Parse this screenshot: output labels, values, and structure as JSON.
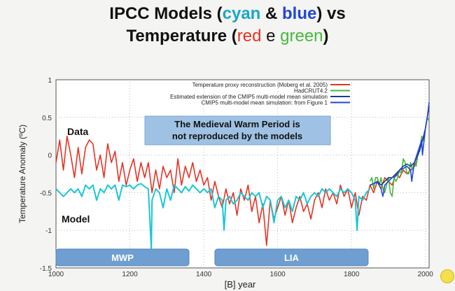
{
  "header": {
    "line1": {
      "part1": "IPCC Models (",
      "cyan": "cyan",
      "amp": " & ",
      "blue": "blue",
      "part2": ") vs"
    },
    "line2": {
      "part1": "Temperature (",
      "red": "red",
      "e": " e ",
      "green": "green",
      "part2": ")"
    }
  },
  "chart_data": {
    "type": "line",
    "xlabel": "[B]   year",
    "ylabel": "Temperature Anomaly (ºC)",
    "xlim": [
      1000,
      2010
    ],
    "ylim": [
      -1.5,
      1
    ],
    "xticks": [
      1000,
      1200,
      1400,
      1600,
      1800,
      2000
    ],
    "yticks": [
      -1.5,
      -1,
      -0.5,
      0,
      0.5,
      1
    ],
    "ytick_labels": [
      "-1.5",
      "-1",
      "-0.5",
      "0",
      "0.5",
      "1"
    ],
    "legend_position": "top-right",
    "series": [
      {
        "name": "Temperature proxy reconstruction (Moberg et al. 2005)",
        "color": "#e53323",
        "x": [
          1000,
          1010,
          1020,
          1030,
          1040,
          1050,
          1060,
          1070,
          1080,
          1090,
          1100,
          1110,
          1120,
          1130,
          1140,
          1150,
          1160,
          1170,
          1180,
          1190,
          1200,
          1210,
          1220,
          1230,
          1240,
          1250,
          1260,
          1270,
          1280,
          1290,
          1300,
          1310,
          1320,
          1330,
          1340,
          1350,
          1360,
          1370,
          1380,
          1390,
          1400,
          1410,
          1420,
          1430,
          1440,
          1450,
          1460,
          1470,
          1480,
          1490,
          1500,
          1510,
          1520,
          1530,
          1540,
          1550,
          1560,
          1570,
          1580,
          1590,
          1600,
          1610,
          1620,
          1630,
          1640,
          1650,
          1660,
          1670,
          1680,
          1690,
          1700,
          1710,
          1720,
          1730,
          1740,
          1750,
          1760,
          1770,
          1780,
          1790,
          1800,
          1810,
          1820,
          1830,
          1840,
          1850,
          1860,
          1870,
          1880,
          1890,
          1900,
          1910,
          1920,
          1930,
          1940,
          1950,
          1960,
          1970,
          1979
        ],
        "y": [
          -0.1,
          0.2,
          -0.2,
          0.25,
          0,
          -0.3,
          0.1,
          -0.25,
          0.1,
          0.2,
          0.15,
          -0.2,
          0,
          -0.3,
          0.15,
          -0.1,
          0.05,
          -0.35,
          -0.1,
          -0.4,
          -0.2,
          -0.05,
          -0.35,
          -0.1,
          -0.3,
          -0.1,
          -0.5,
          -0.2,
          -0.45,
          -0.15,
          -0.3,
          -0.2,
          -0.5,
          -0.05,
          -0.4,
          -0.15,
          -0.3,
          -0.1,
          -0.35,
          -0.2,
          -0.4,
          -0.3,
          -0.6,
          -0.35,
          -0.55,
          -0.7,
          -0.45,
          -0.65,
          -0.5,
          -0.8,
          -0.45,
          -0.6,
          -0.4,
          -0.75,
          -0.55,
          -0.9,
          -0.65,
          -1.2,
          -0.6,
          -0.85,
          -0.7,
          -0.55,
          -0.8,
          -0.6,
          -0.9,
          -0.7,
          -0.55,
          -0.75,
          -0.65,
          -0.85,
          -0.6,
          -0.5,
          -0.7,
          -0.45,
          -0.6,
          -0.5,
          -0.65,
          -0.4,
          -0.55,
          -0.45,
          -0.7,
          -0.5,
          -0.8,
          -0.55,
          -0.6,
          -0.4,
          -0.5,
          -0.35,
          -0.45,
          -0.3,
          -0.35,
          -0.4,
          -0.25,
          -0.3,
          -0.2,
          -0.25,
          -0.2,
          -0.15,
          -0.05
        ]
      },
      {
        "name": "HadCRUT4.2",
        "color": "#46b83a",
        "x": [
          1850,
          1855,
          1860,
          1865,
          1870,
          1875,
          1880,
          1885,
          1890,
          1895,
          1900,
          1905,
          1910,
          1915,
          1920,
          1925,
          1930,
          1935,
          1940,
          1945,
          1950,
          1955,
          1960,
          1965,
          1970,
          1975,
          1980,
          1985,
          1990,
          1995,
          2000,
          2005,
          2010
        ],
        "y": [
          -0.35,
          -0.3,
          -0.45,
          -0.3,
          -0.3,
          -0.4,
          -0.3,
          -0.45,
          -0.5,
          -0.4,
          -0.3,
          -0.5,
          -0.55,
          -0.3,
          -0.35,
          -0.3,
          -0.2,
          -0.25,
          -0.05,
          -0.1,
          -0.25,
          -0.25,
          -0.1,
          -0.2,
          -0.1,
          -0.15,
          0.05,
          0.05,
          0.25,
          0.2,
          0.35,
          0.5,
          0.45
        ]
      },
      {
        "name": "Estimated extension of the CMIP5 multi-model mean simulation",
        "color": "#1b3d8f",
        "x": [
          1850,
          1860,
          1870,
          1880,
          1890,
          1900,
          1910,
          1920,
          1930,
          1940,
          1950,
          1960,
          1970,
          1980,
          1990,
          2000,
          2010
        ],
        "y": [
          -0.4,
          -0.38,
          -0.35,
          -0.4,
          -0.35,
          -0.3,
          -0.3,
          -0.25,
          -0.2,
          -0.15,
          -0.12,
          -0.15,
          -0.1,
          0,
          0.15,
          0.35,
          0.65
        ]
      },
      {
        "name": "CMIP5 multi-model mean simulation: from Figure 1",
        "color": "#2346d8",
        "x": [
          1850,
          1860,
          1870,
          1880,
          1885,
          1890,
          1900,
          1910,
          1920,
          1930,
          1940,
          1950,
          1960,
          1963,
          1970,
          1980,
          1990,
          1992,
          2000,
          2005,
          2010
        ],
        "y": [
          -0.4,
          -0.38,
          -0.36,
          -0.45,
          -0.55,
          -0.4,
          -0.35,
          -0.3,
          -0.28,
          -0.2,
          -0.18,
          -0.15,
          -0.2,
          -0.35,
          -0.1,
          0.05,
          0.2,
          0,
          0.35,
          0.5,
          0.7
        ]
      },
      {
        "name": "",
        "color": "#1dc6d6",
        "x": [
          1000,
          1010,
          1020,
          1030,
          1040,
          1050,
          1060,
          1070,
          1080,
          1090,
          1100,
          1110,
          1120,
          1130,
          1140,
          1150,
          1160,
          1170,
          1180,
          1190,
          1200,
          1210,
          1220,
          1230,
          1240,
          1250,
          1258,
          1260,
          1270,
          1280,
          1290,
          1300,
          1310,
          1320,
          1330,
          1340,
          1350,
          1360,
          1370,
          1380,
          1390,
          1400,
          1410,
          1420,
          1430,
          1440,
          1450,
          1455,
          1460,
          1470,
          1480,
          1490,
          1500,
          1510,
          1520,
          1530,
          1540,
          1550,
          1560,
          1570,
          1580,
          1590,
          1600,
          1610,
          1620,
          1630,
          1640,
          1650,
          1660,
          1670,
          1680,
          1690,
          1700,
          1710,
          1720,
          1730,
          1740,
          1750,
          1760,
          1770,
          1780,
          1790,
          1800,
          1810,
          1815,
          1820,
          1830,
          1840,
          1850
        ],
        "y": [
          -0.45,
          -0.5,
          -0.55,
          -0.5,
          -0.45,
          -0.5,
          -0.45,
          -0.55,
          -0.4,
          -0.45,
          -0.4,
          -0.6,
          -0.45,
          -0.5,
          -0.4,
          -0.45,
          -0.4,
          -0.6,
          -0.4,
          -0.42,
          -0.4,
          -0.45,
          -0.4,
          -0.38,
          -0.42,
          -0.45,
          -1.25,
          -0.6,
          -0.45,
          -0.5,
          -0.7,
          -0.45,
          -0.6,
          -0.4,
          -0.45,
          -0.5,
          -0.42,
          -0.48,
          -0.4,
          -0.45,
          -0.5,
          -0.45,
          -0.5,
          -0.45,
          -0.7,
          -0.55,
          -0.6,
          -1.0,
          -0.6,
          -0.55,
          -0.65,
          -0.6,
          -0.5,
          -0.55,
          -0.6,
          -0.5,
          -0.55,
          -0.5,
          -0.7,
          -0.55,
          -0.6,
          -0.9,
          -0.6,
          -0.55,
          -0.7,
          -0.6,
          -0.75,
          -0.55,
          -0.6,
          -0.5,
          -0.65,
          -0.55,
          -0.5,
          -0.55,
          -0.45,
          -0.5,
          -0.45,
          -0.5,
          -0.55,
          -0.45,
          -0.5,
          -0.45,
          -0.5,
          -0.6,
          -1.0,
          -0.55,
          -0.6,
          -0.5,
          -0.45
        ]
      }
    ],
    "annotations": {
      "data_label": "Data",
      "model_label": "Model",
      "callout_line1": "The Medieval Warm Period is",
      "callout_line2": "not reproduced by the models",
      "mwp": "MWP",
      "lia": "LIA"
    },
    "bands": [
      {
        "label_key": "mwp",
        "from": 1000,
        "to": 1360
      },
      {
        "label_key": "lia",
        "from": 1430,
        "to": 1845
      }
    ]
  }
}
